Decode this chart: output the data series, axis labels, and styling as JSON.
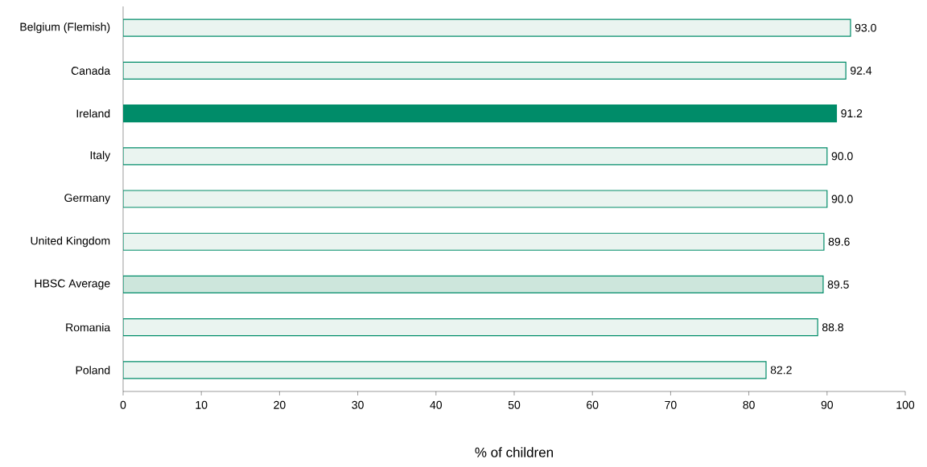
{
  "chart_data": {
    "type": "bar",
    "orientation": "horizontal",
    "xlabel": "% of children",
    "categories": [
      "Belgium (Flemish)",
      "Canada",
      "Ireland",
      "Italy",
      "Germany",
      "United Kingdom",
      "HBSC Average",
      "Romania",
      "Poland"
    ],
    "values": [
      93.0,
      92.4,
      91.2,
      90.0,
      90.0,
      89.6,
      89.5,
      88.8,
      82.2
    ],
    "value_labels": [
      "93.0",
      "92.4",
      "91.2",
      "90.0",
      "90.0",
      "89.6",
      "89.5",
      "88.8",
      "82.2"
    ],
    "colors": [
      "#eaf4f0",
      "#eaf4f0",
      "#008c69",
      "#eaf4f0",
      "#eaf4f0",
      "#eaf4f0",
      "#cde6dc",
      "#eaf4f0",
      "#eaf4f0"
    ],
    "xlim": [
      0,
      100
    ],
    "xticks": [
      0,
      10,
      20,
      30,
      40,
      50,
      60,
      70,
      80,
      90,
      100
    ],
    "grid": false
  }
}
